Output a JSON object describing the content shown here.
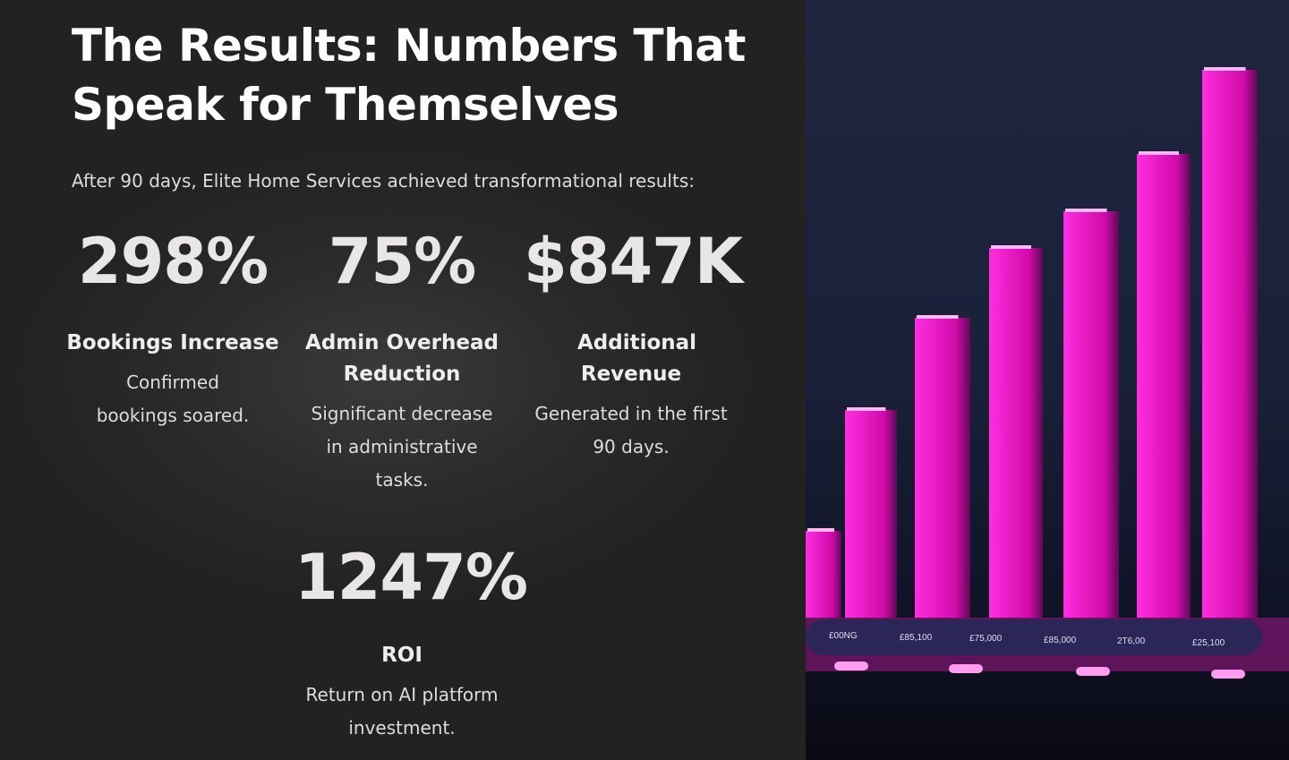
{
  "title": "The Results: Numbers That Speak for Themselves",
  "intro": "After 90 days, Elite Home Services achieved transformational results:",
  "stats": [
    {
      "value": "298%",
      "label": "Bookings Increase",
      "description": "Confirmed bookings soared."
    },
    {
      "value": "75%",
      "label": "Admin Overhead Reduction",
      "description": "Significant decrease in administrative tasks."
    },
    {
      "value": "$847K",
      "label": "Additional Revenue",
      "description": "Generated in the first 90 days."
    },
    {
      "value": "1247%",
      "label": "ROI",
      "description": "Return on AI platform investment."
    }
  ],
  "image": {
    "bar_color": "#ff1fd6",
    "axis_labels": [
      "£00NG",
      "£85,100",
      "£75,000",
      "£85,000",
      "2T6,00",
      "£25,100"
    ]
  }
}
